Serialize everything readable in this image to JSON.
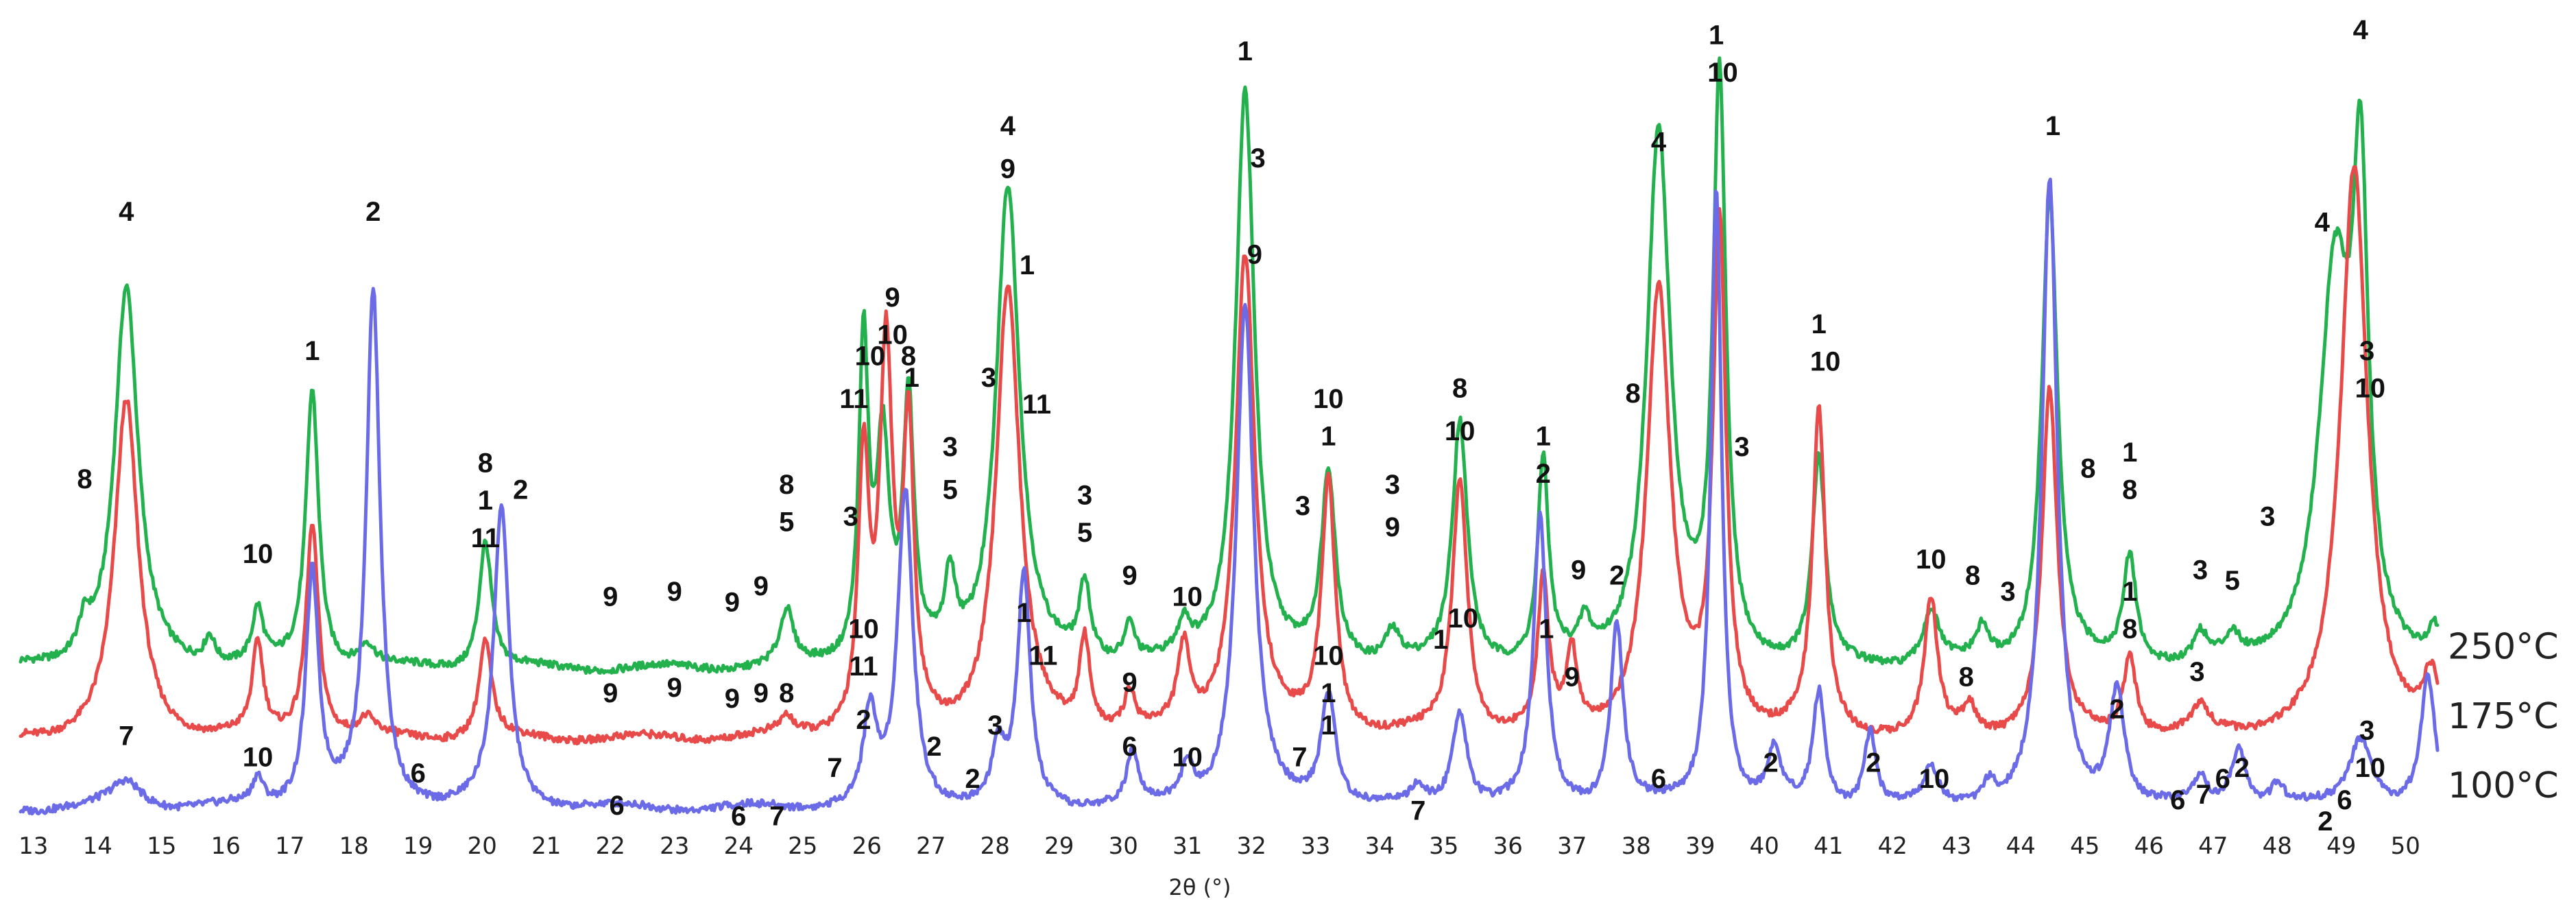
{
  "chart_data": {
    "type": "line",
    "xlabel": "2θ (°)",
    "ylabel": "",
    "xlim": [
      12.8,
      50.5
    ],
    "ylim": [
      0,
      110
    ],
    "grid": false,
    "xticks": [
      "13",
      "14",
      "15",
      "16",
      "17",
      "18",
      "19",
      "20",
      "21",
      "22",
      "23",
      "24",
      "25",
      "26",
      "27",
      "28",
      "29",
      "30",
      "31",
      "32",
      "33",
      "34",
      "35",
      "36",
      "37",
      "38",
      "39",
      "40",
      "41",
      "42",
      "43",
      "44",
      "45",
      "46",
      "47",
      "48",
      "49",
      "50"
    ],
    "series": [
      {
        "name": "250°C",
        "color": "#22b14c",
        "offset": 26,
        "peaks": [
          [
            13.8,
            6,
            0.12
          ],
          [
            14.45,
            71,
            0.22
          ],
          [
            15.75,
            5,
            0.1
          ],
          [
            16.5,
            10,
            0.1
          ],
          [
            17.35,
            52,
            0.12
          ],
          [
            18.2,
            4,
            0.15
          ],
          [
            20.05,
            24,
            0.12
          ],
          [
            24.75,
            10,
            0.12
          ],
          [
            25.95,
            60,
            0.09
          ],
          [
            26.25,
            40,
            0.12
          ],
          [
            26.65,
            48,
            0.1
          ],
          [
            27.3,
            14,
            0.1
          ],
          [
            28.2,
            90,
            0.22
          ],
          [
            29.4,
            14,
            0.1
          ],
          [
            30.1,
            7,
            0.1
          ],
          [
            30.95,
            6,
            0.1
          ],
          [
            31.9,
            108,
            0.18
          ],
          [
            33.2,
            35,
            0.13
          ],
          [
            34.2,
            6,
            0.15
          ],
          [
            35.25,
            45,
            0.14
          ],
          [
            36.55,
            38,
            0.1
          ],
          [
            37.2,
            6,
            0.1
          ],
          [
            38.35,
            100,
            0.22
          ],
          [
            39.3,
            108,
            0.12
          ],
          [
            40.85,
            38,
            0.12
          ],
          [
            42.6,
            10,
            0.15
          ],
          [
            43.4,
            6,
            0.12
          ],
          [
            44.45,
            88,
            0.15
          ],
          [
            45.7,
            20,
            0.12
          ],
          [
            46.8,
            5,
            0.12
          ],
          [
            47.3,
            4,
            0.12
          ],
          [
            48.9,
            72,
            0.3
          ],
          [
            49.3,
            80,
            0.14
          ],
          [
            50.45,
            6,
            0.12
          ]
        ]
      },
      {
        "name": "175°C",
        "color": "#e84a4a",
        "offset": 13,
        "peaks": [
          [
            14.45,
            63,
            0.22
          ],
          [
            16.5,
            17,
            0.1
          ],
          [
            17.35,
            40,
            0.12
          ],
          [
            18.2,
            3,
            0.15
          ],
          [
            20.05,
            18,
            0.12
          ],
          [
            24.75,
            3,
            0.12
          ],
          [
            25.95,
            50,
            0.1
          ],
          [
            26.3,
            70,
            0.12
          ],
          [
            26.65,
            55,
            0.1
          ],
          [
            28.2,
            84,
            0.22
          ],
          [
            29.4,
            17,
            0.1
          ],
          [
            30.1,
            7,
            0.1
          ],
          [
            30.95,
            15,
            0.12
          ],
          [
            31.9,
            90,
            0.18
          ],
          [
            33.2,
            47,
            0.13
          ],
          [
            35.25,
            48,
            0.14
          ],
          [
            36.55,
            28,
            0.1
          ],
          [
            37.0,
            14,
            0.1
          ],
          [
            38.35,
            83,
            0.22
          ],
          [
            39.3,
            95,
            0.12
          ],
          [
            40.85,
            60,
            0.12
          ],
          [
            42.6,
            25,
            0.12
          ],
          [
            43.2,
            5,
            0.12
          ],
          [
            44.45,
            65,
            0.14
          ],
          [
            45.7,
            15,
            0.12
          ],
          [
            46.8,
            5,
            0.15
          ],
          [
            49.2,
            107,
            0.25
          ],
          [
            50.4,
            10,
            0.15
          ]
        ]
      },
      {
        "name": "100°C",
        "color": "#6b6be8",
        "offset": 0,
        "peaks": [
          [
            14.45,
            5,
            0.3
          ],
          [
            16.5,
            5,
            0.1
          ],
          [
            17.35,
            44,
            0.12
          ],
          [
            18.3,
            96,
            0.13
          ],
          [
            20.3,
            56,
            0.14
          ],
          [
            26.05,
            17,
            0.12
          ],
          [
            26.6,
            59,
            0.14
          ],
          [
            28.05,
            10,
            0.12
          ],
          [
            28.45,
            43,
            0.12
          ],
          [
            30.15,
            10,
            0.1
          ],
          [
            31.0,
            7,
            0.12
          ],
          [
            31.9,
            94,
            0.16
          ],
          [
            33.2,
            21,
            0.14
          ],
          [
            34.6,
            3,
            0.12
          ],
          [
            35.25,
            18,
            0.14
          ],
          [
            36.5,
            54,
            0.12
          ],
          [
            37.7,
            34,
            0.12
          ],
          [
            39.25,
            116,
            0.1
          ],
          [
            40.15,
            10,
            0.12
          ],
          [
            40.85,
            21,
            0.11
          ],
          [
            41.65,
            14,
            0.11
          ],
          [
            42.6,
            7,
            0.12
          ],
          [
            43.5,
            4,
            0.12
          ],
          [
            44.45,
            117,
            0.14
          ],
          [
            45.5,
            22,
            0.14
          ],
          [
            46.8,
            5,
            0.12
          ],
          [
            47.4,
            11,
            0.15
          ],
          [
            48.0,
            4,
            0.12
          ],
          [
            49.3,
            13,
            0.22
          ],
          [
            50.35,
            24,
            0.13
          ]
        ]
      }
    ],
    "annotations": [
      {
        "text": "8",
        "x": 13.8,
        "y": 60
      },
      {
        "text": "4",
        "x": 14.45,
        "y": 110
      },
      {
        "text": "10",
        "x": 16.5,
        "y": 46
      },
      {
        "text": "1",
        "x": 17.35,
        "y": 84
      },
      {
        "text": "2",
        "x": 18.3,
        "y": 110
      },
      {
        "text": "8",
        "x": 20.05,
        "y": 63
      },
      {
        "text": "1",
        "x": 20.05,
        "y": 56
      },
      {
        "text": "11",
        "x": 20.05,
        "y": 49
      },
      {
        "text": "2",
        "x": 20.6,
        "y": 58
      },
      {
        "text": "9",
        "x": 22.0,
        "y": 38
      },
      {
        "text": "9",
        "x": 23.0,
        "y": 39
      },
      {
        "text": "9",
        "x": 23.9,
        "y": 37
      },
      {
        "text": "9",
        "x": 24.35,
        "y": 40
      },
      {
        "text": "8",
        "x": 24.75,
        "y": 59
      },
      {
        "text": "5",
        "x": 24.75,
        "y": 52
      },
      {
        "text": "3",
        "x": 25.75,
        "y": 53
      },
      {
        "text": "11",
        "x": 25.8,
        "y": 75
      },
      {
        "text": "10",
        "x": 26.05,
        "y": 83
      },
      {
        "text": "9",
        "x": 26.4,
        "y": 94
      },
      {
        "text": "10",
        "x": 26.4,
        "y": 87
      },
      {
        "text": "8",
        "x": 26.65,
        "y": 83
      },
      {
        "text": "1",
        "x": 26.7,
        "y": 79
      },
      {
        "text": "3",
        "x": 27.3,
        "y": 66
      },
      {
        "text": "5",
        "x": 27.3,
        "y": 58
      },
      {
        "text": "3",
        "x": 27.9,
        "y": 79
      },
      {
        "text": "4",
        "x": 28.2,
        "y": 126
      },
      {
        "text": "9",
        "x": 28.2,
        "y": 118
      },
      {
        "text": "1",
        "x": 28.5,
        "y": 100
      },
      {
        "text": "11",
        "x": 28.65,
        "y": 74
      },
      {
        "text": "3",
        "x": 29.4,
        "y": 57
      },
      {
        "text": "5",
        "x": 29.4,
        "y": 50
      },
      {
        "text": "9",
        "x": 30.1,
        "y": 42
      },
      {
        "text": "10",
        "x": 31.0,
        "y": 38
      },
      {
        "text": "1",
        "x": 31.9,
        "y": 140
      },
      {
        "text": "3",
        "x": 32.1,
        "y": 120
      },
      {
        "text": "9",
        "x": 32.05,
        "y": 102
      },
      {
        "text": "3",
        "x": 32.8,
        "y": 55
      },
      {
        "text": "10",
        "x": 33.2,
        "y": 75
      },
      {
        "text": "1",
        "x": 33.2,
        "y": 68
      },
      {
        "text": "3",
        "x": 34.2,
        "y": 59
      },
      {
        "text": "9",
        "x": 34.2,
        "y": 51
      },
      {
        "text": "8",
        "x": 35.25,
        "y": 77
      },
      {
        "text": "10",
        "x": 35.25,
        "y": 69
      },
      {
        "text": "1",
        "x": 36.55,
        "y": 68
      },
      {
        "text": "2",
        "x": 36.55,
        "y": 61
      },
      {
        "text": "9",
        "x": 37.1,
        "y": 43
      },
      {
        "text": "2",
        "x": 37.7,
        "y": 42
      },
      {
        "text": "4",
        "x": 38.35,
        "y": 123
      },
      {
        "text": "8",
        "x": 37.95,
        "y": 76
      },
      {
        "text": "1",
        "x": 39.25,
        "y": 143
      },
      {
        "text": "10",
        "x": 39.35,
        "y": 136
      },
      {
        "text": "3",
        "x": 39.65,
        "y": 66
      },
      {
        "text": "1",
        "x": 40.85,
        "y": 89
      },
      {
        "text": "10",
        "x": 40.95,
        "y": 82
      },
      {
        "text": "10",
        "x": 42.6,
        "y": 45
      },
      {
        "text": "8",
        "x": 43.25,
        "y": 42
      },
      {
        "text": "3",
        "x": 43.8,
        "y": 39
      },
      {
        "text": "1",
        "x": 44.5,
        "y": 126
      },
      {
        "text": "8",
        "x": 45.05,
        "y": 62
      },
      {
        "text": "1",
        "x": 45.7,
        "y": 65
      },
      {
        "text": "8",
        "x": 45.7,
        "y": 58
      },
      {
        "text": "3",
        "x": 46.8,
        "y": 43
      },
      {
        "text": "5",
        "x": 47.3,
        "y": 41
      },
      {
        "text": "3",
        "x": 47.85,
        "y": 53
      },
      {
        "text": "4",
        "x": 48.7,
        "y": 108
      },
      {
        "text": "4",
        "x": 49.3,
        "y": 144
      },
      {
        "text": "3",
        "x": 49.4,
        "y": 84
      },
      {
        "text": "10",
        "x": 49.45,
        "y": 77
      },
      {
        "text": "10",
        "x": 25.95,
        "y": 32
      },
      {
        "text": "11",
        "x": 25.95,
        "y": 25
      },
      {
        "text": "1",
        "x": 28.45,
        "y": 35
      },
      {
        "text": "11",
        "x": 28.75,
        "y": 27
      },
      {
        "text": "9",
        "x": 22.0,
        "y": 20
      },
      {
        "text": "9",
        "x": 23.0,
        "y": 21
      },
      {
        "text": "9",
        "x": 23.9,
        "y": 19
      },
      {
        "text": "9",
        "x": 24.35,
        "y": 20
      },
      {
        "text": "8",
        "x": 24.75,
        "y": 20
      },
      {
        "text": "9",
        "x": 30.1,
        "y": 22
      },
      {
        "text": "10",
        "x": 33.2,
        "y": 27
      },
      {
        "text": "1",
        "x": 33.2,
        "y": 20
      },
      {
        "text": "1",
        "x": 34.95,
        "y": 30
      },
      {
        "text": "10",
        "x": 35.3,
        "y": 34
      },
      {
        "text": "1",
        "x": 36.6,
        "y": 32
      },
      {
        "text": "9",
        "x": 37.0,
        "y": 23
      },
      {
        "text": "1",
        "x": 45.7,
        "y": 39
      },
      {
        "text": "8",
        "x": 45.7,
        "y": 32
      },
      {
        "text": "8",
        "x": 43.15,
        "y": 23
      },
      {
        "text": "3",
        "x": 46.75,
        "y": 24
      },
      {
        "text": "7",
        "x": 14.45,
        "y": 12
      },
      {
        "text": "10",
        "x": 16.5,
        "y": 8
      },
      {
        "text": "6",
        "x": 19.0,
        "y": 5
      },
      {
        "text": "6",
        "x": 22.1,
        "y": -1
      },
      {
        "text": "6",
        "x": 24.0,
        "y": -3
      },
      {
        "text": "7",
        "x": 24.6,
        "y": -3
      },
      {
        "text": "7",
        "x": 25.5,
        "y": 6
      },
      {
        "text": "2",
        "x": 25.95,
        "y": 15
      },
      {
        "text": "2",
        "x": 27.05,
        "y": 10
      },
      {
        "text": "2",
        "x": 27.65,
        "y": 4
      },
      {
        "text": "3",
        "x": 28.0,
        "y": 14
      },
      {
        "text": "6",
        "x": 30.1,
        "y": 10
      },
      {
        "text": "10",
        "x": 31.0,
        "y": 8
      },
      {
        "text": "7",
        "x": 32.75,
        "y": 8
      },
      {
        "text": "1",
        "x": 33.2,
        "y": 14
      },
      {
        "text": "7",
        "x": 34.6,
        "y": -2
      },
      {
        "text": "6",
        "x": 38.35,
        "y": 4
      },
      {
        "text": "2",
        "x": 40.1,
        "y": 7
      },
      {
        "text": "2",
        "x": 41.7,
        "y": 7
      },
      {
        "text": "10",
        "x": 42.65,
        "y": 4
      },
      {
        "text": "2",
        "x": 45.5,
        "y": 17
      },
      {
        "text": "6",
        "x": 46.45,
        "y": 0
      },
      {
        "text": "7",
        "x": 46.85,
        "y": 1
      },
      {
        "text": "6",
        "x": 47.15,
        "y": 4
      },
      {
        "text": "2",
        "x": 47.45,
        "y": 6
      },
      {
        "text": "2",
        "x": 48.75,
        "y": -4
      },
      {
        "text": "6",
        "x": 49.05,
        "y": 0
      },
      {
        "text": "3",
        "x": 49.4,
        "y": 13
      },
      {
        "text": "10",
        "x": 49.45,
        "y": 6
      }
    ]
  }
}
